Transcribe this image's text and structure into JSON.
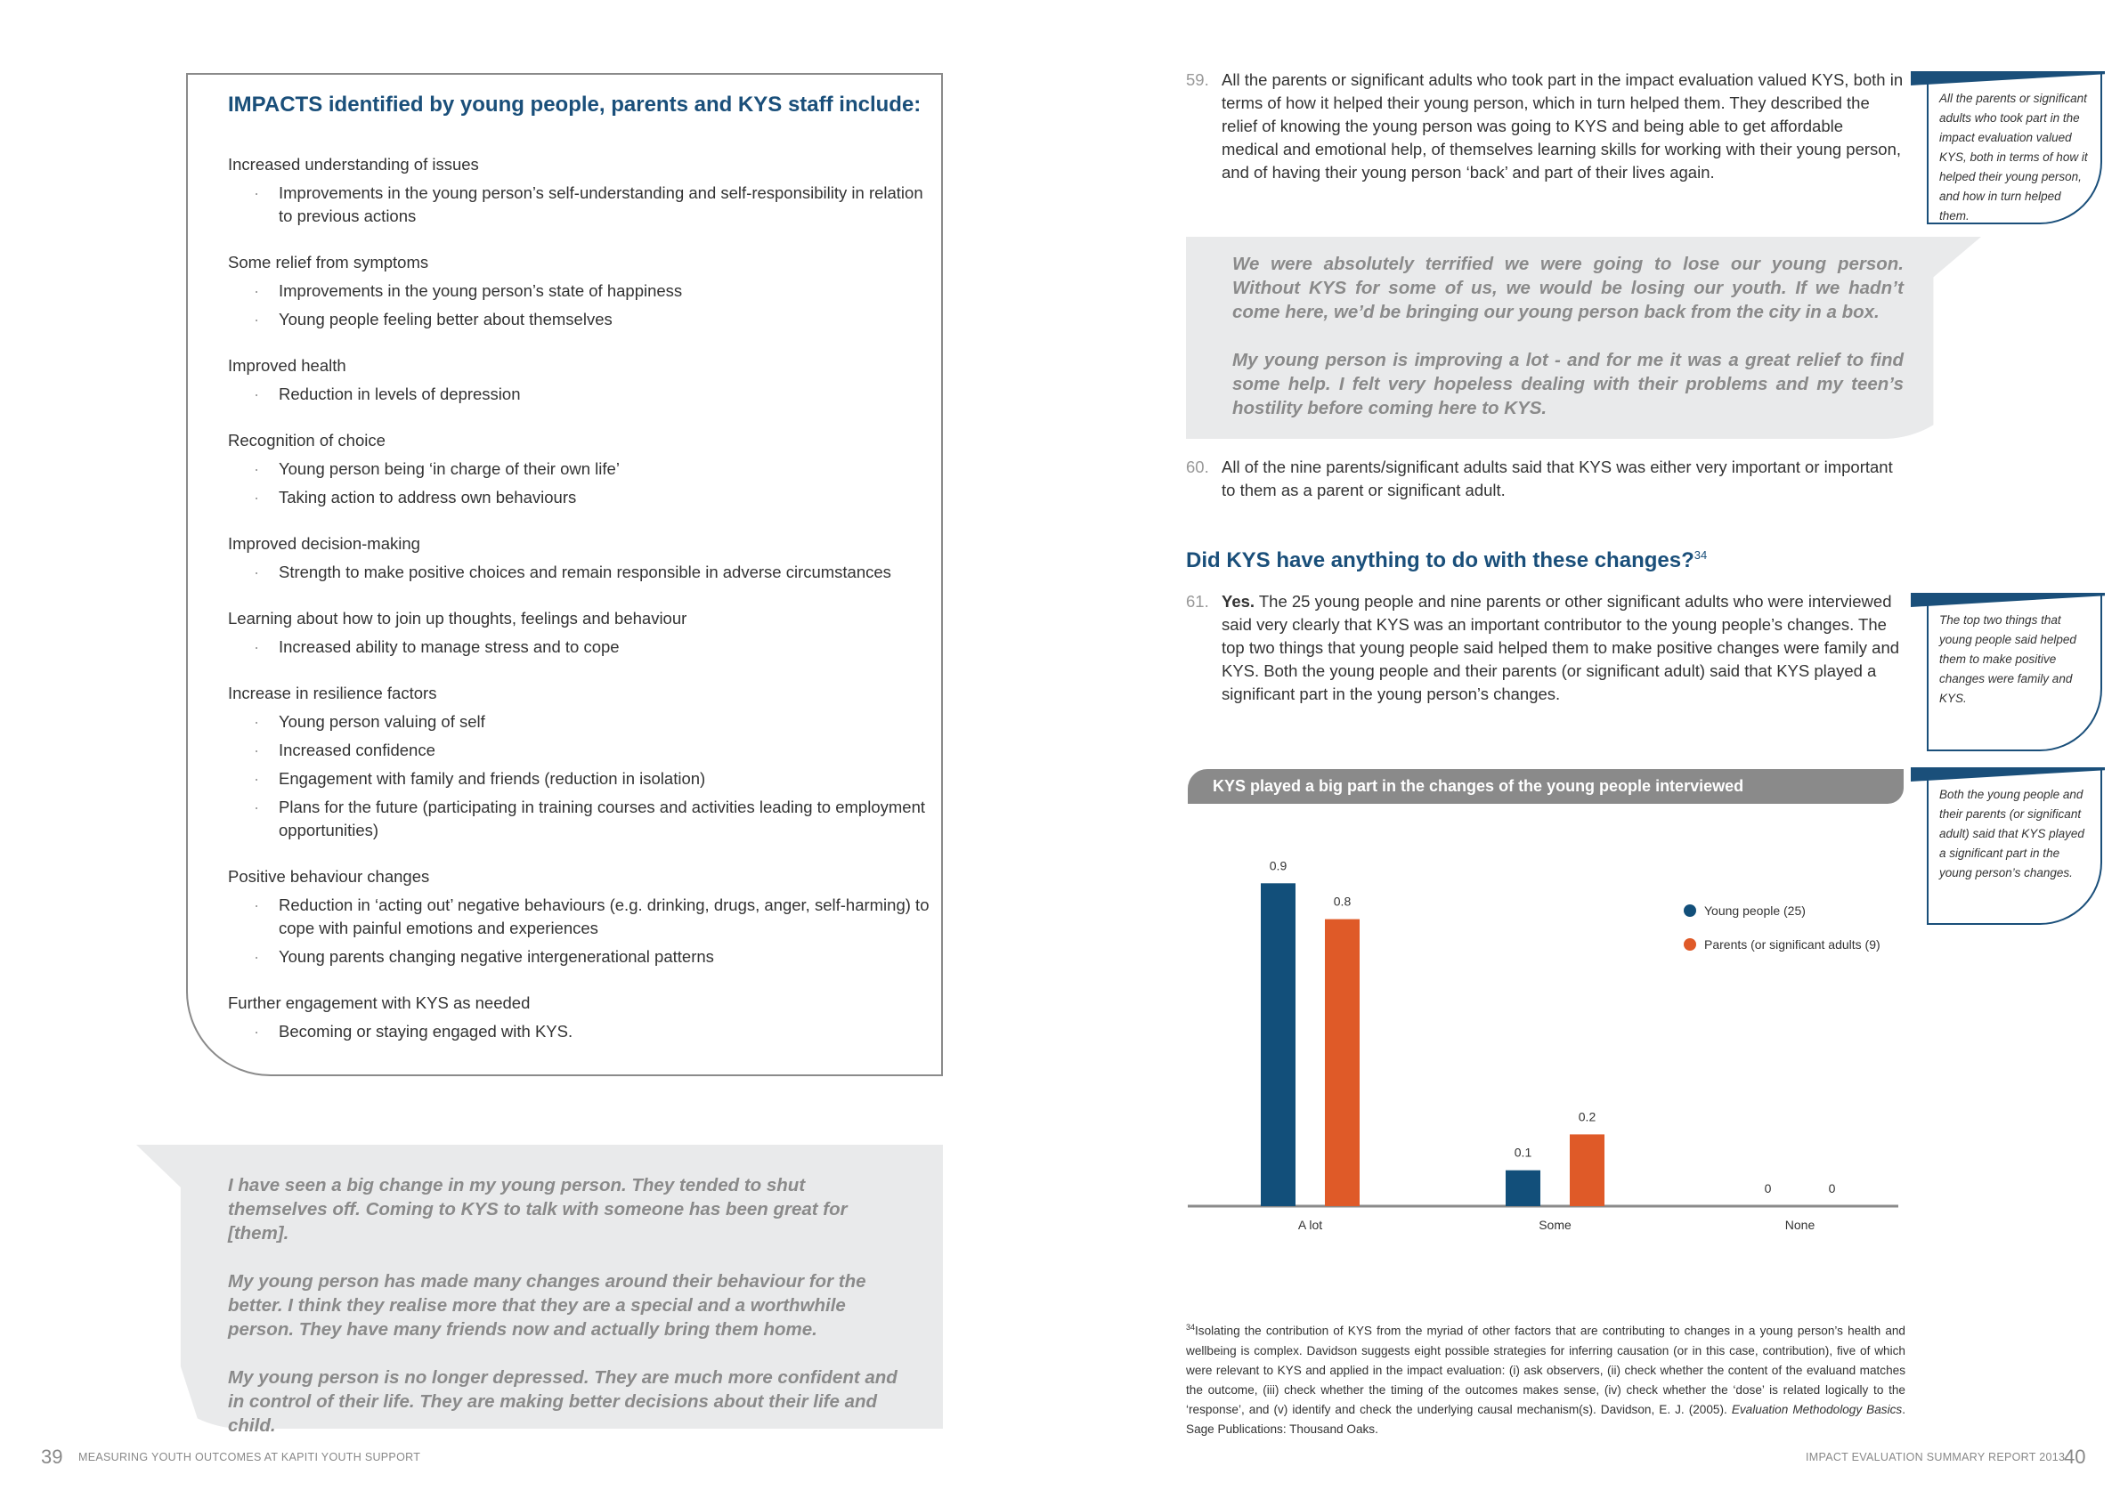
{
  "left_page": {
    "impacts_box": {
      "title": "IMPACTS identified by young people, parents and KYS staff include:",
      "categories": [
        {
          "label": "Increased understanding of issues",
          "items": [
            "Improvements in the young person’s self-understanding and self-responsibility in relation to previous actions"
          ]
        },
        {
          "label": "Some relief from symptoms",
          "items": [
            " Improvements in the young person’s state of happiness",
            "Young people feeling better about themselves"
          ]
        },
        {
          "label": "Improved health",
          "items": [
            "Reduction in levels of depression"
          ]
        },
        {
          "label": "Recognition of choice",
          "items": [
            "Young person being ‘in charge of their own life’",
            "Taking action to address own behaviours"
          ]
        },
        {
          "label": "Improved decision-making",
          "items": [
            "Strength to make positive choices and remain responsible in adverse circumstances"
          ]
        },
        {
          "label": "Learning about how to join up thoughts, feelings and behaviour",
          "items": [
            "Increased ability to manage stress and to cope"
          ]
        },
        {
          "label": "Increase in resilience factors",
          "items": [
            "Young person valuing of self",
            "Increased confidence",
            "Engagement with family and friends (reduction in isolation)",
            "Plans for the future (participating in training courses and activities leading to employment opportunities)"
          ]
        },
        {
          "label": "Positive behaviour changes",
          "items": [
            "Reduction in ‘acting out’ negative behaviours (e.g. drinking, drugs, anger, self-harming) to cope with painful emotions and experiences",
            "Young parents changing negative intergenerational patterns"
          ]
        },
        {
          "label": "Further engagement with KYS as needed",
          "items": [
            "Becoming or staying engaged with KYS."
          ]
        }
      ]
    },
    "quotes": [
      "I have seen a big change in my young person. They tended to shut themselves off. Coming to KYS to talk with someone has been great for [them].",
      "My young person has made many changes around their behaviour for the better. I think they realise more that they are a special and a worthwhile person. They have many friends now and actually bring them home.",
      "My young person is no longer depressed. They are much more confident and in control of their life. They are making better decisions about their life and child."
    ],
    "footer": {
      "page_number": "39",
      "running_title": "MEASURING YOUTH OUTCOMES AT KAPITI YOUTH SUPPORT"
    }
  },
  "right_page": {
    "paragraphs": [
      {
        "number": "59.",
        "text": "All the parents or significant adults who took part in the impact evaluation valued KYS, both in terms of how it helped their young person, which in turn helped them. They described the relief of knowing the young person was going to KYS and being able to get affordable medical and emotional help, of themselves learning skills for working with their young person, and of having their young person ‘back’ and part of their lives again."
      },
      {
        "number": "60.",
        "text": "All of the nine parents/significant adults said that KYS was either very important or important to them as a parent or significant adult."
      },
      {
        "number": "61.",
        "bold_lead": "Yes.",
        "text": " The 25 young people and nine parents or other significant adults who were interviewed said very clearly that KYS was an important contributor to the young people’s changes. The top two things that young people said helped them to make positive changes were family and KYS. Both the young people and their parents (or significant adult) said that KYS played a significant part in the young person’s changes."
      }
    ],
    "quotes": [
      "We were absolutely terrified we were going to lose our young person. Without KYS for some of us, we would be losing our youth. If we hadn’t come here, we’d be bringing our young person back from the city in a box.",
      "My young person is improving a lot - and for me it was a great relief to find some help. I felt very hopeless dealing with their problems and my teen’s hostility before coming here to KYS."
    ],
    "section_heading": "Did KYS have anything to do with these changes?",
    "section_heading_footnote_ref": "34",
    "callouts": [
      "All the parents or significant adults who took part in the impact evaluation valued KYS, both in terms of how it helped their young person, and how in turn helped them.",
      "The top two things that young people said helped them to make positive changes were family and KYS.",
      "Both the young people and their parents (or significant adult) said that KYS played a significant part in the young person’s changes."
    ],
    "footnote": {
      "marker": "34",
      "text": "Isolating the contribution of KYS from the myriad of other factors that are contributing to changes in a young person’s health and wellbeing is complex. Davidson suggests eight possible strategies for inferring causation (or in this case, contribution), five of which were relevant to KYS and applied in the impact evaluation: (i) ask observers, (ii) check whether the content of the evaluand matches the outcome, (iii) check whether the timing of the outcomes makes sense, (iv) check whether the ‘dose’ is related logically to the ‘response’, and (v) identify and check the underlying causal mechanism(s). Davidson, E. J. (2005). ",
      "italic_title": "Evaluation Methodology Basics",
      "tail": ". Sage Publications: Thousand Oaks."
    },
    "footer": {
      "running_title": "IMPACT EVALUATION SUMMARY REPORT 2013",
      "page_number": "40"
    }
  },
  "chart_data": {
    "type": "bar",
    "title": "KYS played a big part in the changes of the young people interviewed",
    "categories": [
      "A lot",
      "Some",
      "None"
    ],
    "series": [
      {
        "name": "Young people (25)",
        "values": [
          0.9,
          0.1,
          0
        ],
        "color": "#124f7a"
      },
      {
        "name": "Parents (or significant adults (9)",
        "values": [
          0.8,
          0.2,
          0
        ],
        "color": "#df5a28"
      }
    ],
    "data_labels": true,
    "ylim": [
      0,
      1
    ],
    "grid": false,
    "legend_position": "right"
  },
  "colors": {
    "accent_blue": "#1a4f7a",
    "quote_grey": "#e9eaeb",
    "quote_text": "#8a8a8a"
  }
}
